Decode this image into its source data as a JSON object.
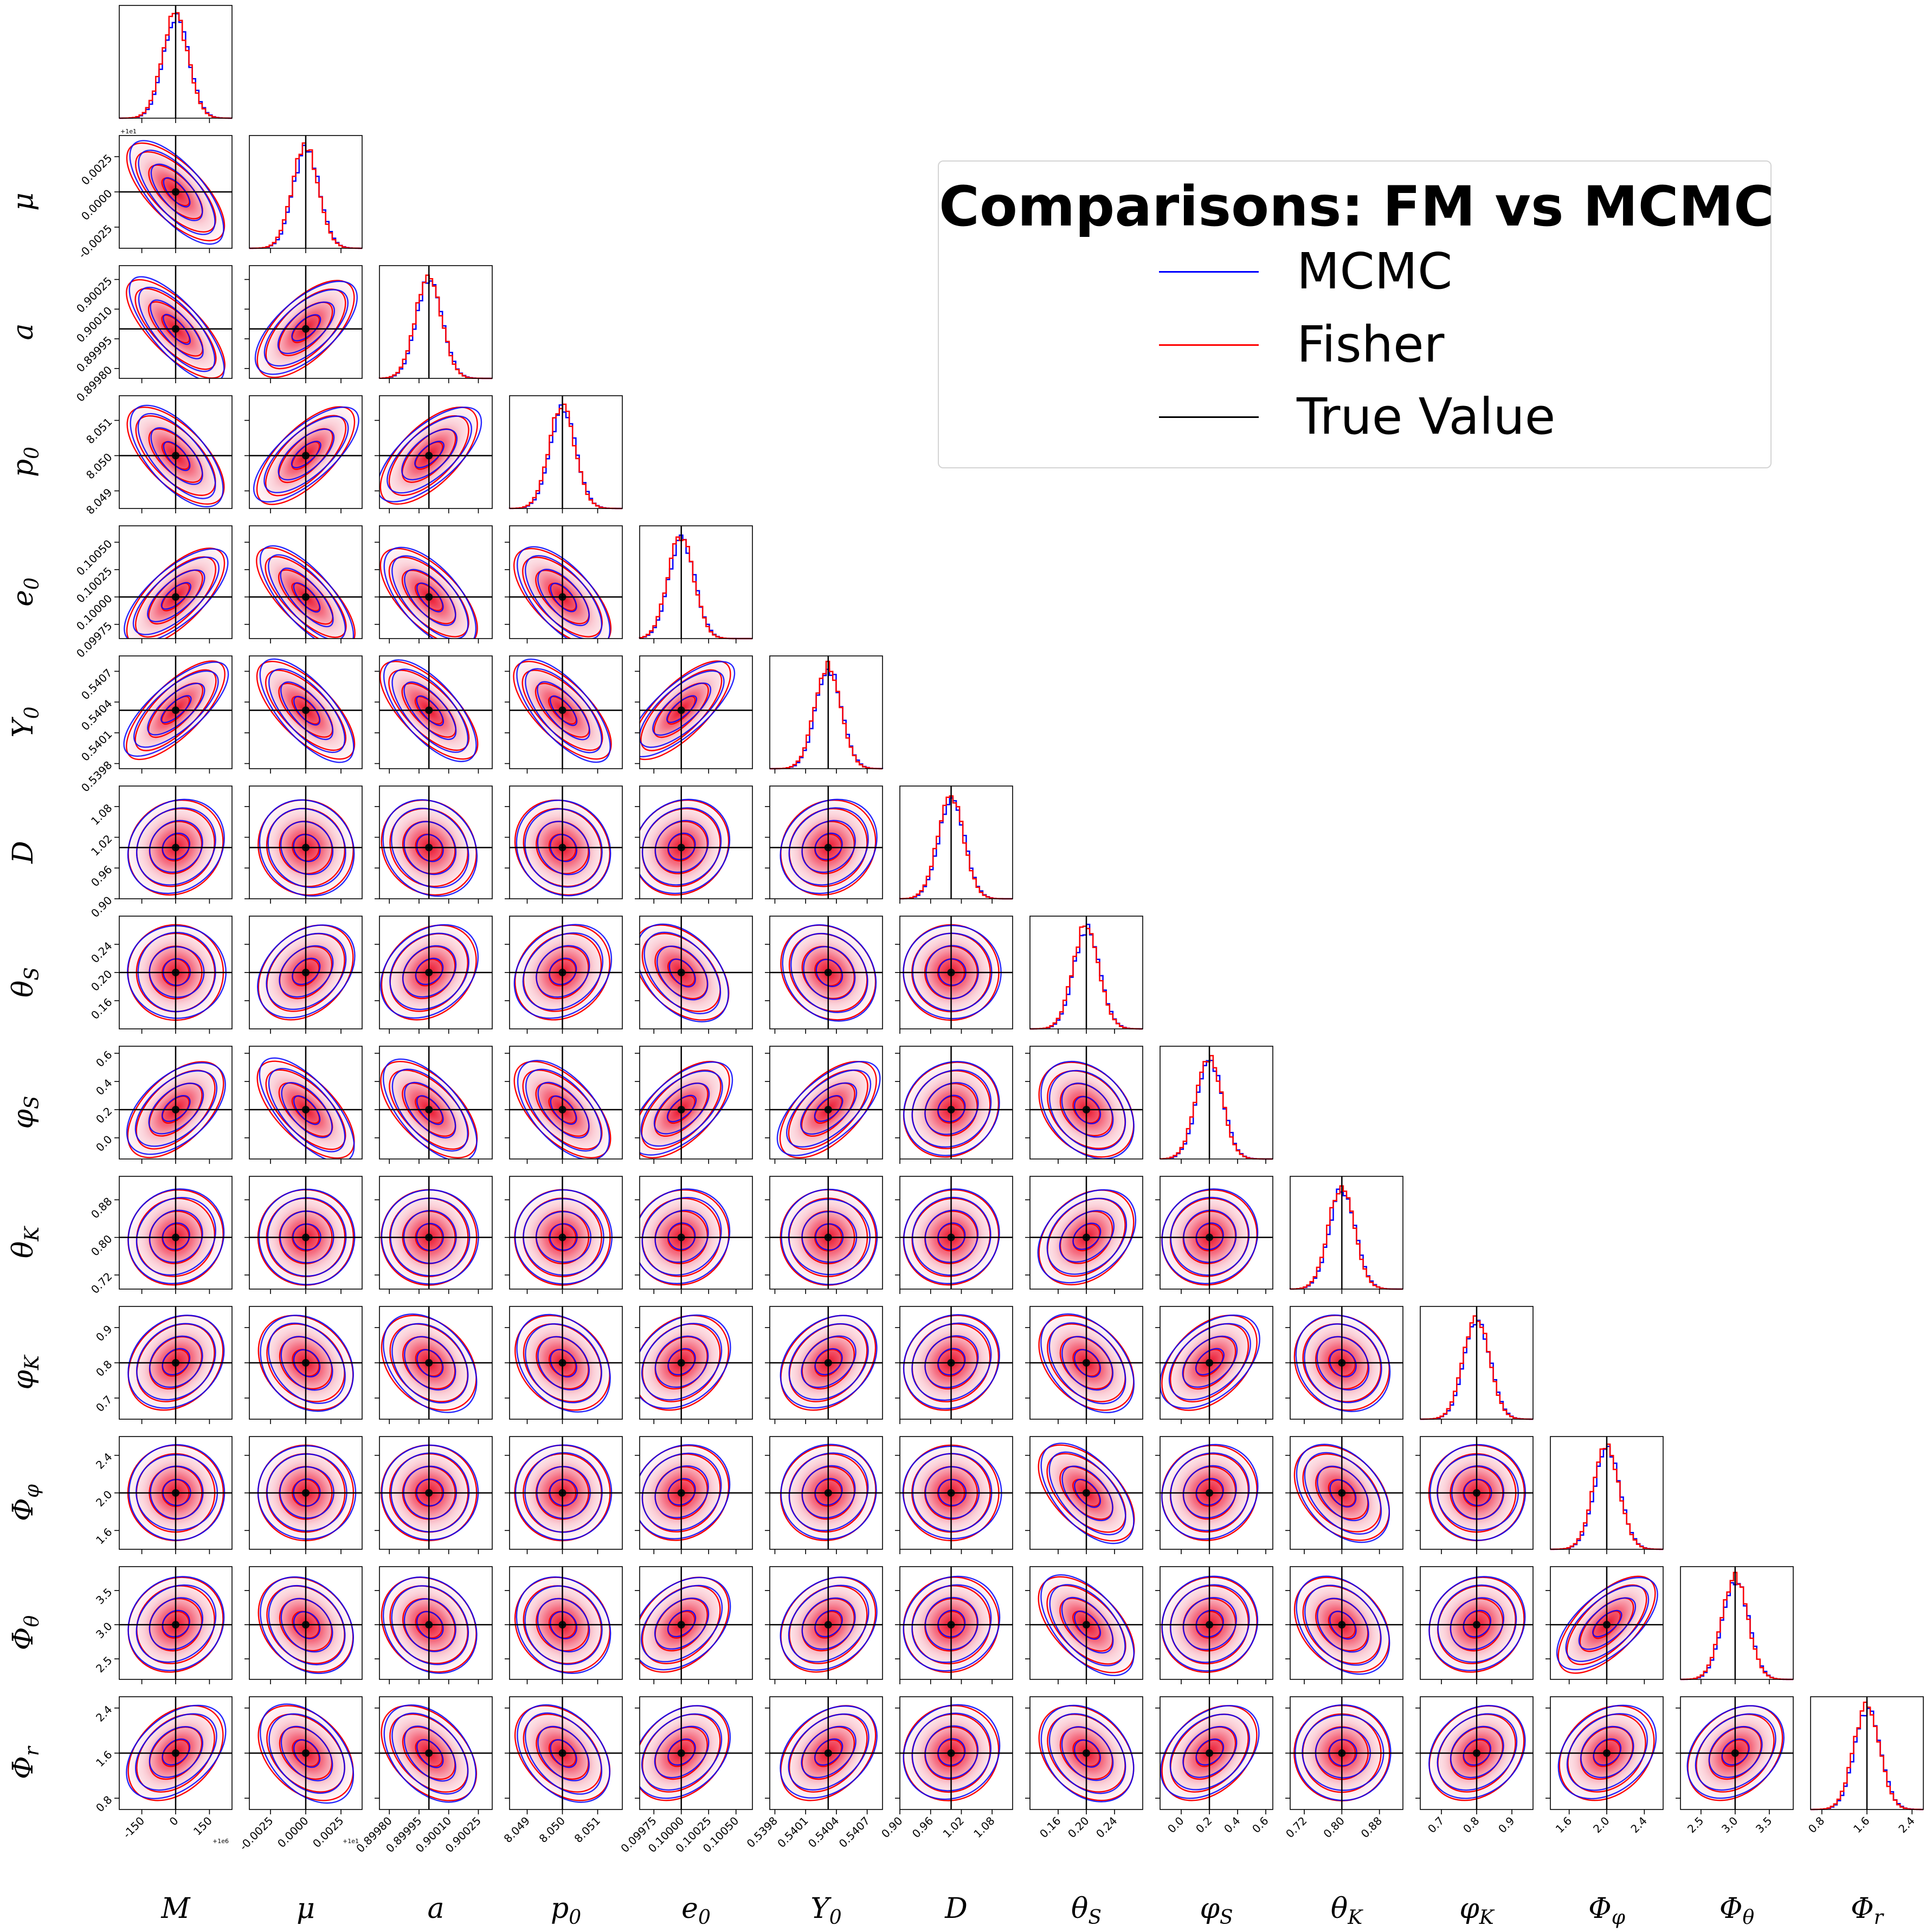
{
  "legend": {
    "title": "Comparisons: FM vs MCMC",
    "entries": [
      {
        "label": "MCMC",
        "color": "#0000ff"
      },
      {
        "label": "Fisher",
        "color": "#ff0000"
      },
      {
        "label": "True Value",
        "color": "#000000"
      }
    ]
  },
  "colors": {
    "mcmc": "#0000ff",
    "fisher": "#ff0000",
    "truth": "#000000",
    "combined": "#800080"
  },
  "chart_data": {
    "type": "corner",
    "legend_placement": "upper-right",
    "parameters": [
      {
        "name": "M",
        "label": "M",
        "truth": 0,
        "range": [
          -250,
          250
        ],
        "ticks": [
          "-150",
          "0",
          "150"
        ],
        "offset": "+1e6"
      },
      {
        "name": "mu",
        "label": "μ",
        "truth": 0,
        "range": [
          -0.004,
          0.004
        ],
        "ticks": [
          "-0.0025",
          "0.0000",
          "0.0025"
        ],
        "offset": "+1e1"
      },
      {
        "name": "a",
        "label": "a",
        "truth": 0.9,
        "range": [
          0.89975,
          0.90032
        ],
        "ticks": [
          "0.89980",
          "0.89995",
          "0.90010",
          "0.90025"
        ],
        "offset": ""
      },
      {
        "name": "p0",
        "label": "p0",
        "truth": 8.05,
        "range": [
          8.0485,
          8.0517
        ],
        "ticks": [
          "8.049",
          "8.050",
          "8.051"
        ],
        "offset": ""
      },
      {
        "name": "e0",
        "label": "e0",
        "truth": 0.1,
        "range": [
          0.09962,
          0.10065
        ],
        "ticks": [
          "0.09975",
          "0.10000",
          "0.10025",
          "0.10050"
        ],
        "offset": ""
      },
      {
        "name": "Y0",
        "label": "Y0",
        "truth": 0.54032,
        "range": [
          0.53975,
          0.54085
        ],
        "ticks": [
          "0.5398",
          "0.5401",
          "0.5404",
          "0.5407"
        ],
        "offset": ""
      },
      {
        "name": "D",
        "label": "D",
        "truth": 1.0,
        "range": [
          0.9,
          1.12
        ],
        "ticks": [
          "0.90",
          "0.96",
          "1.02",
          "1.08"
        ],
        "offset": ""
      },
      {
        "name": "thetaS",
        "label": "θS",
        "truth": 0.2,
        "range": [
          0.12,
          0.28
        ],
        "ticks": [
          "0.16",
          "0.20",
          "0.24"
        ],
        "offset": ""
      },
      {
        "name": "phiS",
        "label": "φS",
        "truth": 0.2,
        "range": [
          -0.15,
          0.65
        ],
        "ticks": [
          "0.0",
          "0.2",
          "0.4",
          "0.6"
        ],
        "offset": ""
      },
      {
        "name": "thetaK",
        "label": "θK",
        "truth": 0.8,
        "range": [
          0.69,
          0.93
        ],
        "ticks": [
          "0.72",
          "0.80",
          "0.88"
        ],
        "offset": ""
      },
      {
        "name": "phiK",
        "label": "φK",
        "truth": 0.8,
        "range": [
          0.64,
          0.96
        ],
        "ticks": [
          "0.7",
          "0.8",
          "0.9"
        ],
        "offset": ""
      },
      {
        "name": "Phiphi",
        "label": "Φφ",
        "truth": 2.0,
        "range": [
          1.4,
          2.6
        ],
        "ticks": [
          "1.6",
          "2.0",
          "2.4"
        ],
        "offset": ""
      },
      {
        "name": "Phitheta",
        "label": "Φθ",
        "truth": 3.0,
        "range": [
          2.2,
          3.85
        ],
        "ticks": [
          "2.5",
          "3.0",
          "3.5"
        ],
        "offset": ""
      },
      {
        "name": "Phir",
        "label": "Φr",
        "truth": 1.6,
        "range": [
          0.6,
          2.6
        ],
        "ticks": [
          "0.8",
          "1.6",
          "2.4"
        ],
        "offset": ""
      }
    ],
    "correlations": [
      [
        1.0,
        -0.6,
        -0.65,
        -0.55,
        0.6,
        0.65,
        0.1,
        0.0,
        0.45,
        0.05,
        0.2,
        0.0,
        0.1,
        0.3
      ],
      [
        -0.6,
        1.0,
        0.55,
        0.6,
        -0.65,
        -0.6,
        -0.05,
        0.25,
        -0.55,
        0.0,
        -0.2,
        0.0,
        -0.2,
        -0.3
      ],
      [
        -0.65,
        0.55,
        1.0,
        0.55,
        -0.55,
        -0.6,
        -0.1,
        0.2,
        -0.5,
        0.0,
        -0.25,
        0.0,
        -0.15,
        -0.35
      ],
      [
        -0.55,
        0.6,
        0.55,
        1.0,
        -0.55,
        -0.6,
        -0.1,
        0.15,
        -0.5,
        0.0,
        -0.2,
        0.0,
        -0.1,
        -0.3
      ],
      [
        0.6,
        -0.65,
        -0.55,
        -0.55,
        1.0,
        0.65,
        0.1,
        -0.35,
        0.5,
        0.05,
        0.2,
        0.1,
        0.3,
        0.25
      ],
      [
        0.65,
        -0.6,
        -0.6,
        -0.6,
        0.65,
        1.0,
        0.1,
        -0.15,
        0.5,
        0.0,
        0.25,
        0.05,
        0.2,
        0.3
      ],
      [
        0.1,
        -0.05,
        -0.1,
        -0.1,
        0.1,
        0.1,
        1.0,
        0.0,
        0.1,
        0.05,
        0.1,
        0.0,
        0.05,
        0.05
      ],
      [
        0.0,
        0.25,
        0.2,
        0.15,
        -0.35,
        -0.15,
        0.0,
        1.0,
        -0.25,
        0.25,
        -0.3,
        -0.45,
        -0.45,
        -0.25
      ],
      [
        0.45,
        -0.55,
        -0.5,
        -0.5,
        0.5,
        0.5,
        0.1,
        -0.25,
        1.0,
        0.05,
        0.35,
        0.05,
        0.05,
        0.3
      ],
      [
        0.05,
        0.0,
        0.0,
        0.0,
        0.05,
        0.0,
        0.05,
        0.25,
        0.05,
        1.0,
        -0.1,
        -0.3,
        -0.25,
        0.0
      ],
      [
        0.2,
        -0.2,
        -0.25,
        -0.2,
        0.2,
        0.25,
        0.1,
        -0.3,
        0.35,
        -0.1,
        1.0,
        0.0,
        0.1,
        0.2
      ],
      [
        0.0,
        0.0,
        0.0,
        0.0,
        0.1,
        0.05,
        0.0,
        -0.45,
        0.05,
        -0.3,
        0.0,
        1.0,
        0.55,
        0.2
      ],
      [
        0.1,
        -0.2,
        -0.15,
        -0.1,
        0.3,
        0.2,
        0.05,
        -0.45,
        0.05,
        -0.25,
        0.1,
        0.55,
        1.0,
        0.25
      ],
      [
        0.3,
        -0.3,
        -0.35,
        -0.3,
        0.25,
        0.3,
        0.05,
        -0.25,
        0.3,
        0.0,
        0.2,
        0.2,
        0.25,
        1.0
      ]
    ]
  }
}
